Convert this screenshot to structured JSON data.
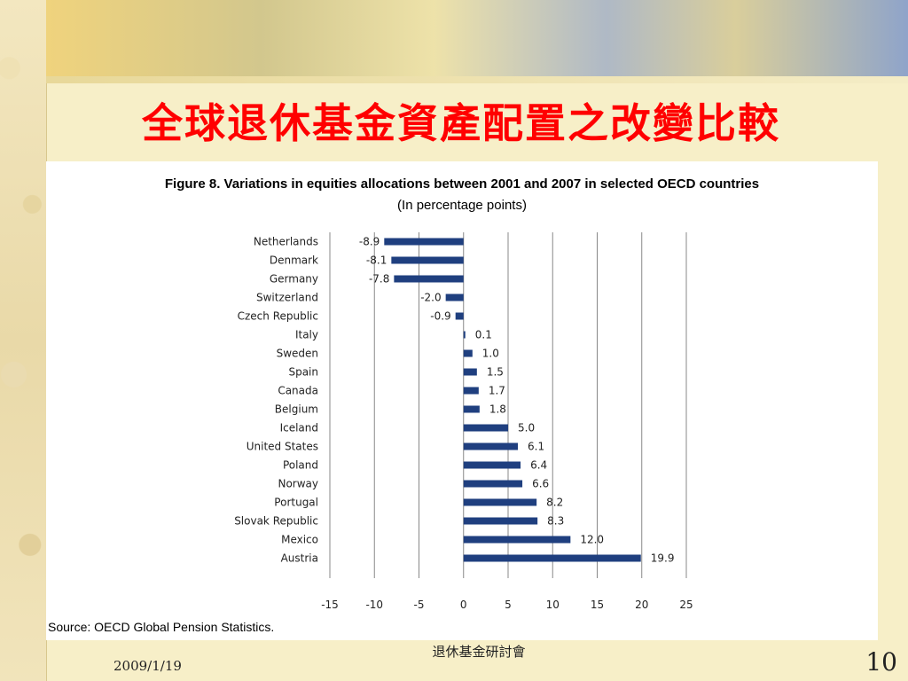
{
  "slide": {
    "title": "全球退休基金資產配置之改變比較",
    "footer_center": "退休基金研討會",
    "footer_date": "2009/1/19",
    "page_number": "10"
  },
  "chart_data": {
    "type": "bar",
    "orientation": "horizontal",
    "title": "Figure 8.  Variations in equities allocations between 2001 and 2007 in selected OECD countries",
    "subtitle": "(In percentage points)",
    "categories": [
      "Netherlands",
      "Denmark",
      "Germany",
      "Switzerland",
      "Czech Republic",
      "Italy",
      "Sweden",
      "Spain",
      "Canada",
      "Belgium",
      "Iceland",
      "United States",
      "Poland",
      "Norway",
      "Portugal",
      "Slovak Republic",
      "Mexico",
      "Austria"
    ],
    "values": [
      -8.9,
      -8.1,
      -7.8,
      -2.0,
      -0.9,
      0.1,
      1.0,
      1.5,
      1.7,
      1.8,
      5.0,
      6.1,
      6.4,
      6.6,
      8.2,
      8.3,
      12.0,
      19.9
    ],
    "value_labels": [
      "-8.9",
      "-8.1",
      "-7.8",
      "-2.0",
      "-0.9",
      "0.1",
      "1.0",
      "1.5",
      "1.7",
      "1.8",
      "5.0",
      "6.1",
      "6.4",
      "6.6",
      "8.2",
      "8.3",
      "12.0",
      "19.9"
    ],
    "xlim": [
      -15,
      25
    ],
    "xticks": [
      -15,
      -10,
      -5,
      0,
      5,
      10,
      15,
      20,
      25
    ],
    "grid": "vertical",
    "bar_color": "#1f3f7f",
    "source": "Source: OECD Global Pension Statistics."
  }
}
